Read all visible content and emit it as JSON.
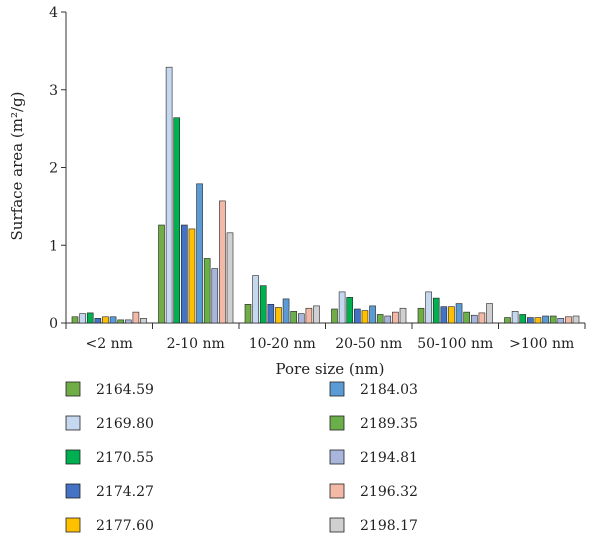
{
  "chart_data": {
    "type": "bar",
    "xlabel": "Pore size (nm)",
    "ylabel": "Surface area (m²/g)",
    "ylim": [
      0,
      4
    ],
    "yticks": [
      "0",
      "1",
      "2",
      "3",
      "4"
    ],
    "categories": [
      "<2 nm",
      "2-10 nm",
      "10-20 nm",
      "20-50 nm",
      "50-100 nm",
      ">100 nm"
    ],
    "grid": false,
    "legend_placement": "bottom, two columns",
    "series": [
      {
        "name": "2164.59",
        "color": "#70AD47",
        "values": [
          0.08,
          1.26,
          0.24,
          0.18,
          0.19,
          0.07
        ]
      },
      {
        "name": "2169.80",
        "color": "#C5D8F0",
        "values": [
          0.12,
          3.29,
          0.61,
          0.4,
          0.4,
          0.15
        ]
      },
      {
        "name": "2170.55",
        "color": "#00B050",
        "values": [
          0.13,
          2.64,
          0.48,
          0.33,
          0.32,
          0.11
        ]
      },
      {
        "name": "2174.27",
        "color": "#4472C4",
        "values": [
          0.06,
          1.26,
          0.24,
          0.18,
          0.21,
          0.07
        ]
      },
      {
        "name": "2177.60",
        "color": "#FFC000",
        "values": [
          0.08,
          1.21,
          0.2,
          0.16,
          0.21,
          0.07
        ]
      },
      {
        "name": "2184.03",
        "color": "#5B9BD5",
        "values": [
          0.08,
          1.79,
          0.31,
          0.22,
          0.25,
          0.09
        ]
      },
      {
        "name": "2189.35",
        "color": "#6AAF4A",
        "values": [
          0.04,
          0.83,
          0.15,
          0.11,
          0.14,
          0.09
        ]
      },
      {
        "name": "2194.81",
        "color": "#A9B6DC",
        "values": [
          0.04,
          0.7,
          0.12,
          0.09,
          0.1,
          0.06
        ]
      },
      {
        "name": "2196.32",
        "color": "#F4B9A6",
        "values": [
          0.14,
          1.57,
          0.19,
          0.14,
          0.13,
          0.08
        ]
      },
      {
        "name": "2198.17",
        "color": "#D0D0D0",
        "values": [
          0.06,
          1.16,
          0.22,
          0.19,
          0.25,
          0.09
        ]
      }
    ]
  }
}
